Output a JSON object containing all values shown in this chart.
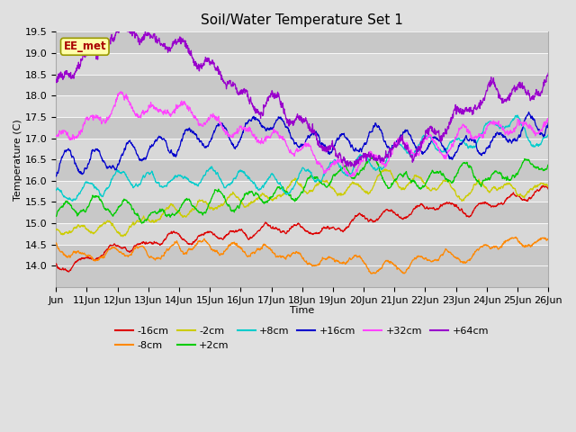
{
  "title": "Soil/Water Temperature Set 1",
  "xlabel": "Time",
  "ylabel": "Temperature (C)",
  "ylim": [
    13.5,
    19.5
  ],
  "yticks": [
    14.0,
    14.5,
    15.0,
    15.5,
    16.0,
    16.5,
    17.0,
    17.5,
    18.0,
    18.5,
    19.0,
    19.5
  ],
  "background_color": "#e0e0e0",
  "band_colors": [
    "#c8c8c8",
    "#d8d8d8"
  ],
  "ee_met_label": "EE_met",
  "ee_met_color": "#aa0000",
  "ee_met_bg": "#ffffaa",
  "ee_met_edge": "#999900",
  "series": [
    {
      "label": "-16cm",
      "color": "#dd0000"
    },
    {
      "label": "-8cm",
      "color": "#ff8800"
    },
    {
      "label": "-2cm",
      "color": "#cccc00"
    },
    {
      "label": "+2cm",
      "color": "#00cc00"
    },
    {
      "label": "+8cm",
      "color": "#00cccc"
    },
    {
      "label": "+16cm",
      "color": "#0000cc"
    },
    {
      "label": "+32cm",
      "color": "#ff44ff"
    },
    {
      "label": "+64cm",
      "color": "#9900cc"
    }
  ],
  "n_points": 1440,
  "title_fontsize": 11,
  "axis_fontsize": 8,
  "legend_fontsize": 8,
  "linewidth": 0.9,
  "figsize": [
    6.4,
    4.8
  ],
  "dpi": 100
}
